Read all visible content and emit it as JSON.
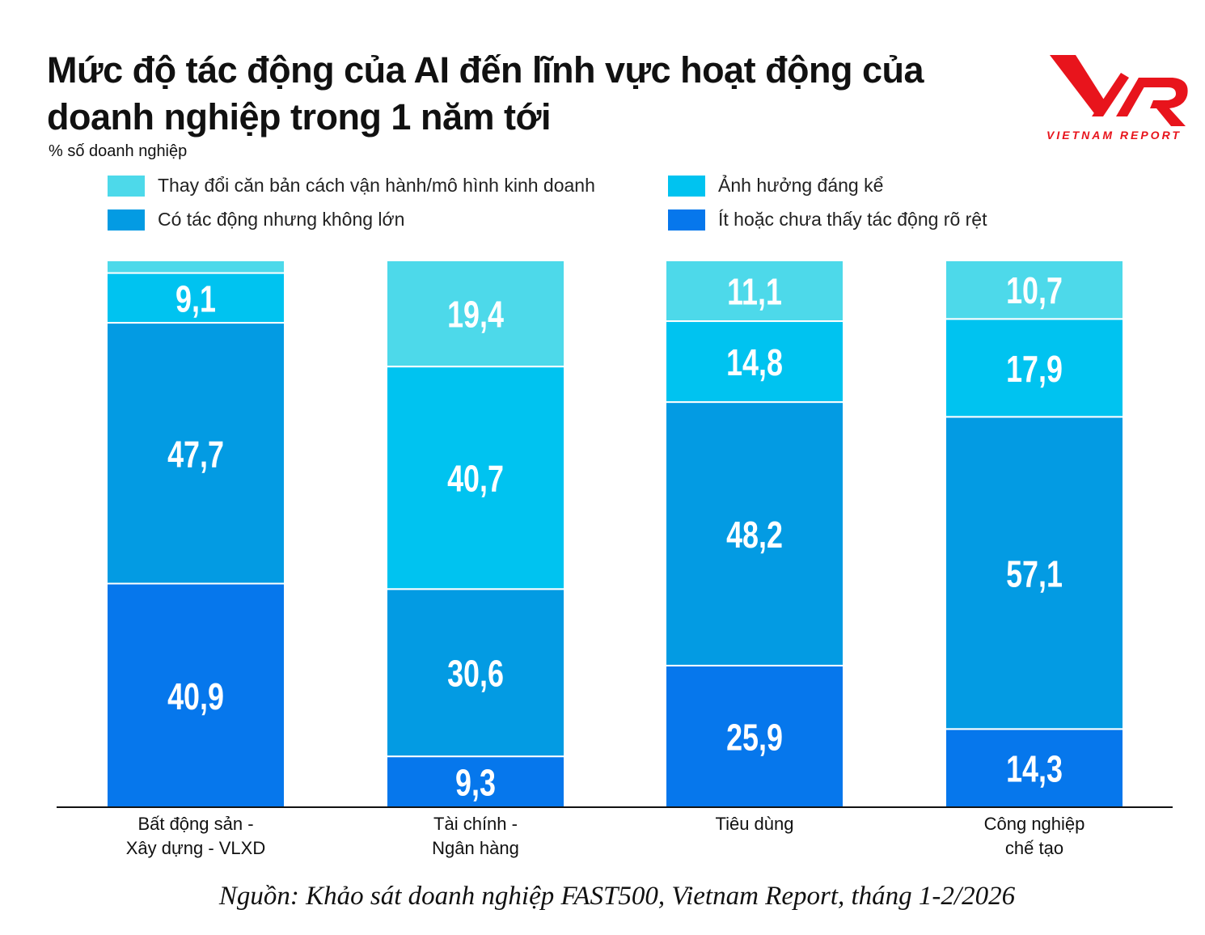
{
  "title_lines": [
    "Mức độ tác động của AI đến lĩnh vực hoạt động của",
    "doanh nghiệp trong 1 năm tới"
  ],
  "subtitle": "% số doanh nghiệp",
  "logo": {
    "mark": "VNR",
    "text": "VIETNAM REPORT",
    "color": "#e8141c"
  },
  "source": "Nguồn: Khảo sát doanh nghiệp FAST500, Vietnam Report, tháng 1-2/2026",
  "chart_data": {
    "type": "bar",
    "stacked": true,
    "ylim": [
      0,
      100
    ],
    "grid": false,
    "legend_position": "top",
    "categories": [
      [
        "Bất động sản -",
        "Xây dựng - VLXD"
      ],
      [
        "Tài chính -",
        "Ngân hàng"
      ],
      [
        "Tiêu dùng"
      ],
      [
        "Công nghiệp",
        "chế tạo"
      ]
    ],
    "series": [
      {
        "name": "Ít hoặc chưa thấy tác động rõ rệt",
        "color": "#0677ec",
        "values": [
          40.9,
          9.3,
          25.9,
          14.3
        ],
        "labels": [
          "40,9",
          "9,3",
          "25,9",
          "14,3"
        ]
      },
      {
        "name": "Có tác động nhưng không lớn",
        "color": "#039be3",
        "values": [
          47.7,
          30.6,
          48.2,
          57.1
        ],
        "labels": [
          "47,7",
          "30,6",
          "48,2",
          "57,1"
        ]
      },
      {
        "name": "Ảnh hưởng đáng kể",
        "color": "#00c3f0",
        "values": [
          9.1,
          40.7,
          14.8,
          17.9
        ],
        "labels": [
          "9,1",
          "40,7",
          "14,8",
          "17,9"
        ]
      },
      {
        "name": "Thay đổi căn bản cách vận hành/mô hình kinh doanh",
        "color": "#4dd9ea",
        "values": [
          2.3,
          19.4,
          11.1,
          10.7
        ],
        "labels": [
          "",
          "19,4",
          "11,1",
          "10,7"
        ]
      }
    ]
  }
}
